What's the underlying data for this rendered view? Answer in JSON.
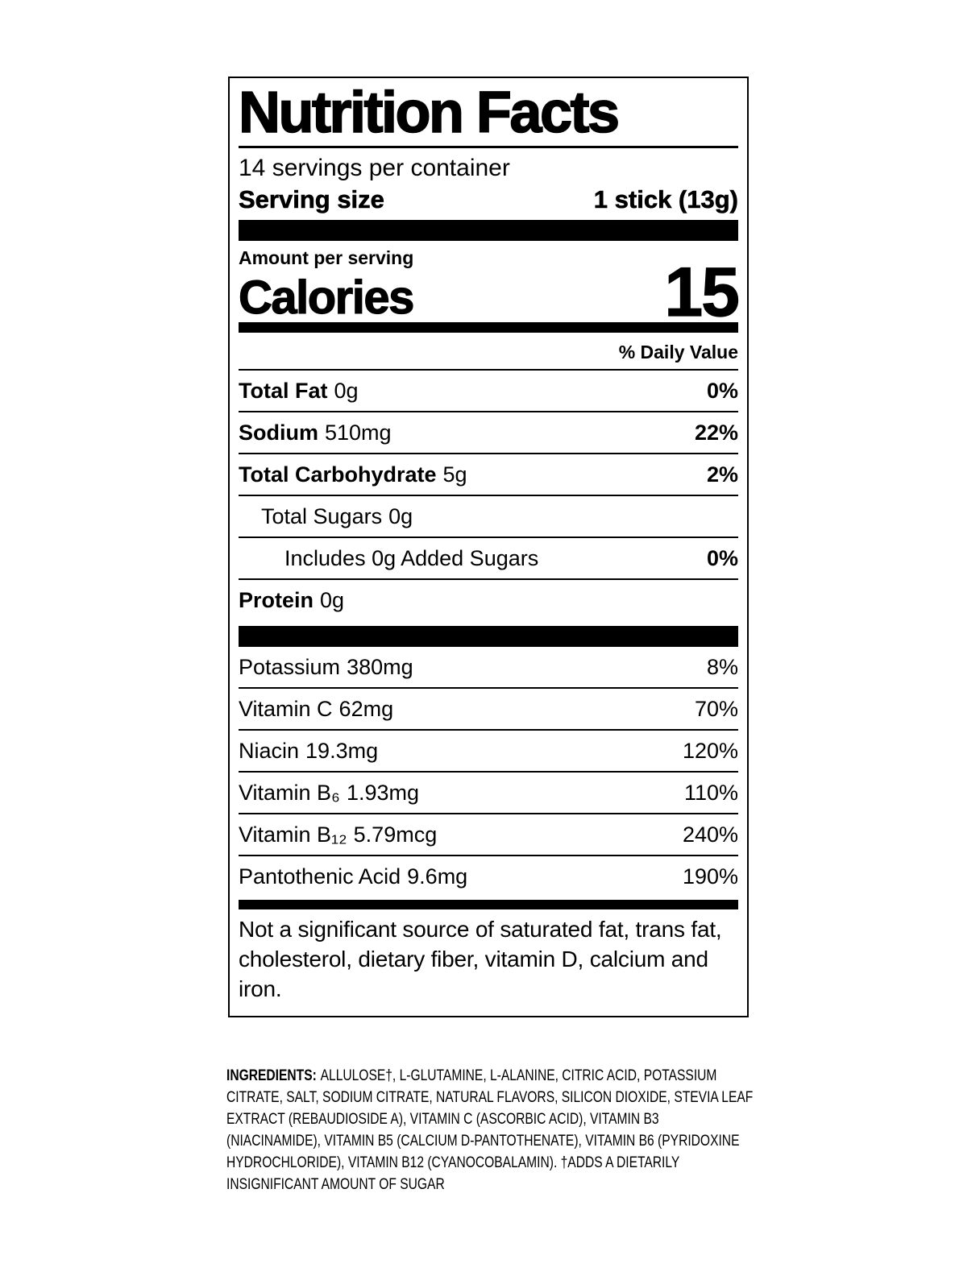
{
  "colors": {
    "ink": "#000000",
    "background": "#ffffff"
  },
  "label": {
    "title": "Nutrition Facts",
    "servings_per_container": "14 servings per container",
    "serving_size_label": "Serving size",
    "serving_size_value": "1 stick (13g)",
    "amount_per_serving": "Amount per serving",
    "calories_label": "Calories",
    "calories_value": "15",
    "daily_value_header": "% Daily Value",
    "nutrients": [
      {
        "name": "Total Fat",
        "amount": "0g",
        "dv": "0%"
      },
      {
        "name": "Sodium",
        "amount": "510mg",
        "dv": "22%"
      },
      {
        "name": "Total Carbohydrate",
        "amount": "5g",
        "dv": "2%"
      },
      {
        "name": "Total Sugars",
        "amount": "0g",
        "dv": ""
      },
      {
        "name": "Includes 0g Added Sugars",
        "amount": "",
        "dv": "0%"
      },
      {
        "name": "Protein",
        "amount": "0g",
        "dv": ""
      }
    ],
    "micronutrients": [
      {
        "name": "Potassium",
        "amount": "380mg",
        "dv": "8%"
      },
      {
        "name": "Vitamin C",
        "amount": "62mg",
        "dv": "70%"
      },
      {
        "name": "Niacin",
        "amount": "19.3mg",
        "dv": "120%"
      },
      {
        "name": "Vitamin B₆",
        "amount": "1.93mg",
        "dv": "110%"
      },
      {
        "name": "Vitamin B₁₂",
        "amount": "5.79mcg",
        "dv": "240%"
      },
      {
        "name": "Pantothenic Acid",
        "amount": "9.6mg",
        "dv": "190%"
      }
    ],
    "footnote": "Not a significant source of saturated fat, trans fat, cholesterol, dietary fiber, vitamin D, calcium and iron."
  },
  "ingredients": {
    "label": "INGREDIENTS:",
    "text": "ALLULOSE†, L-GLUTAMINE, L-ALANINE, CITRIC ACID, POTASSIUM CITRATE, SALT, SODIUM CITRATE, NATURAL FLAVORS, SILICON DIOXIDE, STEVIA LEAF EXTRACT (REBAUDIOSIDE A), VITAMIN C (ASCORBIC ACID), VITAMIN B3 (NIACINAMIDE), VITAMIN B5 (CALCIUM D-PANTOTHENATE), VITAMIN B6 (PYRIDOXINE HYDROCHLORIDE), VITAMIN B12 (CYANOCOBALAMIN). †ADDS A DIETARILY INSIGNIFICANT AMOUNT OF SUGAR"
  }
}
